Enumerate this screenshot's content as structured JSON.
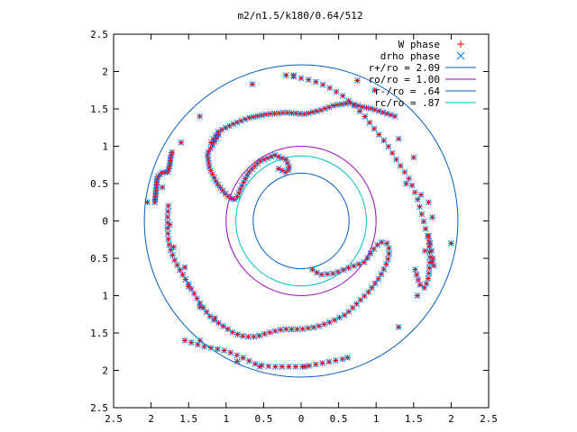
{
  "chart_data": {
    "type": "scatter",
    "title": "m2/n1.5/k180/0.64/512",
    "xlabel": "",
    "ylabel": "",
    "xlim": [
      -2.5,
      2.5
    ],
    "ylim": [
      -2.5,
      2.5
    ],
    "x_ticks": [
      "2.5",
      "2",
      "1.5",
      "1",
      "0.5",
      "0",
      "0.5",
      "1",
      "1.5",
      "2",
      "2.5"
    ],
    "y_ticks": [
      "2.5",
      "2",
      "1.5",
      "1",
      "0.5",
      "0",
      "0.5",
      "1",
      "1.5",
      "2",
      "2.5"
    ],
    "grid": false,
    "legend_position": "top-right",
    "point_series": [
      {
        "name": "W phase",
        "marker": "plus",
        "color": "#ff0000"
      },
      {
        "name": "drho phase",
        "marker": "x",
        "color": "#0080ff"
      }
    ],
    "circles": [
      {
        "name": "r+/ro = 2.09",
        "radius": 2.09,
        "color": "#0060c0"
      },
      {
        "name": "ro/ro = 1.00",
        "radius": 1.0,
        "color": "#a000c0"
      },
      {
        "name": "r-/ro = .64",
        "radius": 0.64,
        "color": "#0060c0"
      },
      {
        "name": "rc/ro = .87",
        "radius": 0.87,
        "color": "#00c0c0"
      }
    ],
    "spiral_arms": [
      {
        "points": [
          [
            -0.2,
            1.95
          ],
          [
            -0.05,
            1.92
          ],
          [
            0.15,
            1.88
          ],
          [
            0.35,
            1.8
          ],
          [
            0.55,
            1.68
          ],
          [
            0.7,
            1.55
          ],
          [
            0.85,
            1.4
          ],
          [
            1.0,
            1.2
          ],
          [
            1.15,
            1.02
          ],
          [
            1.25,
            0.85
          ],
          [
            1.35,
            0.7
          ],
          [
            1.45,
            0.55
          ],
          [
            1.55,
            0.3
          ],
          [
            1.62,
            0.05
          ],
          [
            1.67,
            -0.15
          ],
          [
            1.72,
            -0.3
          ],
          [
            1.75,
            -0.45
          ],
          [
            1.77,
            -0.6
          ]
        ],
        "density": 34
      },
      {
        "points": [
          [
            -1.55,
            -1.6
          ],
          [
            -1.3,
            -1.68
          ],
          [
            -1.0,
            -1.74
          ],
          [
            -0.8,
            -1.82
          ],
          [
            -0.6,
            -1.92
          ],
          [
            -0.4,
            -1.95
          ],
          [
            -0.2,
            -1.95
          ],
          [
            0.05,
            -1.95
          ],
          [
            0.3,
            -1.9
          ],
          [
            0.55,
            -1.85
          ]
        ],
        "density": 24
      },
      {
        "points": [
          [
            -1.95,
            0.25
          ],
          [
            -1.93,
            0.45
          ],
          [
            -1.92,
            0.58
          ],
          [
            -1.85,
            0.65
          ],
          [
            -1.78,
            0.65
          ],
          [
            -1.75,
            0.75
          ],
          [
            -1.74,
            0.85
          ],
          [
            -1.72,
            0.92
          ]
        ],
        "density": 20
      },
      {
        "points": [
          [
            -1.77,
            0.2
          ],
          [
            -1.78,
            0.05
          ],
          [
            -1.78,
            -0.1
          ],
          [
            -1.77,
            -0.25
          ],
          [
            -1.75,
            -0.35
          ],
          [
            -1.7,
            -0.5
          ],
          [
            -1.62,
            -0.65
          ],
          [
            -1.5,
            -0.85
          ],
          [
            -1.35,
            -1.1
          ],
          [
            -1.2,
            -1.3
          ],
          [
            -1.05,
            -1.4
          ],
          [
            -0.9,
            -1.5
          ],
          [
            -0.75,
            -1.55
          ],
          [
            -0.6,
            -1.55
          ],
          [
            -0.45,
            -1.5
          ],
          [
            -0.25,
            -1.45
          ],
          [
            0.0,
            -1.45
          ],
          [
            0.2,
            -1.42
          ],
          [
            0.4,
            -1.35
          ],
          [
            0.6,
            -1.25
          ],
          [
            0.75,
            -1.1
          ],
          [
            0.9,
            -0.95
          ],
          [
            1.05,
            -0.75
          ],
          [
            1.15,
            -0.55
          ],
          [
            1.18,
            -0.4
          ],
          [
            1.15,
            -0.3
          ],
          [
            1.05,
            -0.28
          ],
          [
            0.95,
            -0.4
          ],
          [
            0.85,
            -0.55
          ],
          [
            0.65,
            -0.62
          ],
          [
            0.45,
            -0.7
          ],
          [
            0.25,
            -0.72
          ],
          [
            0.15,
            -0.65
          ]
        ],
        "density": 80
      },
      {
        "points": [
          [
            -1.1,
            1.15
          ],
          [
            -1.25,
            0.9
          ],
          [
            -1.22,
            0.7
          ],
          [
            -1.12,
            0.5
          ],
          [
            -1.0,
            0.35
          ],
          [
            -0.9,
            0.28
          ],
          [
            -0.85,
            0.32
          ],
          [
            -0.8,
            0.45
          ],
          [
            -0.7,
            0.65
          ],
          [
            -0.55,
            0.8
          ],
          [
            -0.35,
            0.88
          ],
          [
            -0.2,
            0.82
          ],
          [
            -0.15,
            0.7
          ],
          [
            -0.2,
            0.65
          ],
          [
            -0.3,
            0.7
          ]
        ],
        "density": 45
      },
      {
        "points": [
          [
            -1.2,
            1.05
          ],
          [
            -1.1,
            1.2
          ],
          [
            -0.9,
            1.3
          ],
          [
            -0.7,
            1.38
          ],
          [
            -0.45,
            1.43
          ],
          [
            -0.2,
            1.45
          ],
          [
            0.05,
            1.43
          ],
          [
            0.25,
            1.48
          ],
          [
            0.45,
            1.55
          ],
          [
            0.65,
            1.58
          ],
          [
            0.8,
            1.53
          ],
          [
            0.95,
            1.5
          ],
          [
            1.1,
            1.45
          ],
          [
            1.2,
            1.42
          ]
        ],
        "density": 45
      },
      {
        "points": [
          [
            1.7,
            -0.2
          ],
          [
            1.72,
            -0.5
          ],
          [
            1.7,
            -0.75
          ],
          [
            1.65,
            -0.9
          ],
          [
            1.58,
            -0.85
          ],
          [
            1.52,
            -0.65
          ]
        ],
        "density": 14
      }
    ],
    "isolated_points": [
      [
        -1.35,
        1.4
      ],
      [
        -1.6,
        1.05
      ],
      [
        -1.85,
        0.45
      ],
      [
        -2.05,
        0.25
      ],
      [
        -1.75,
        -0.05
      ],
      [
        -1.7,
        -0.35
      ],
      [
        -1.55,
        -0.62
      ],
      [
        -1.5,
        -0.88
      ],
      [
        -1.35,
        -1.15
      ],
      [
        -1.15,
        -1.3
      ],
      [
        -1.35,
        -1.6
      ],
      [
        -0.85,
        -1.88
      ],
      [
        -0.55,
        -1.95
      ],
      [
        0.05,
        -1.95
      ],
      [
        0.62,
        -1.83
      ],
      [
        1.3,
        -1.42
      ],
      [
        1.55,
        -1.0
      ],
      [
        1.75,
        -0.55
      ],
      [
        2.0,
        -0.3
      ],
      [
        1.6,
        0.35
      ],
      [
        1.5,
        0.85
      ],
      [
        1.3,
        1.1
      ],
      [
        1.25,
        1.4
      ],
      [
        0.98,
        1.75
      ],
      [
        0.75,
        1.88
      ],
      [
        -0.1,
        1.95
      ],
      [
        -0.65,
        1.83
      ],
      [
        1.75,
        0.05
      ],
      [
        1.7,
        0.25
      ],
      [
        1.4,
        0.5
      ],
      [
        1.65,
        -0.4
      ]
    ]
  }
}
